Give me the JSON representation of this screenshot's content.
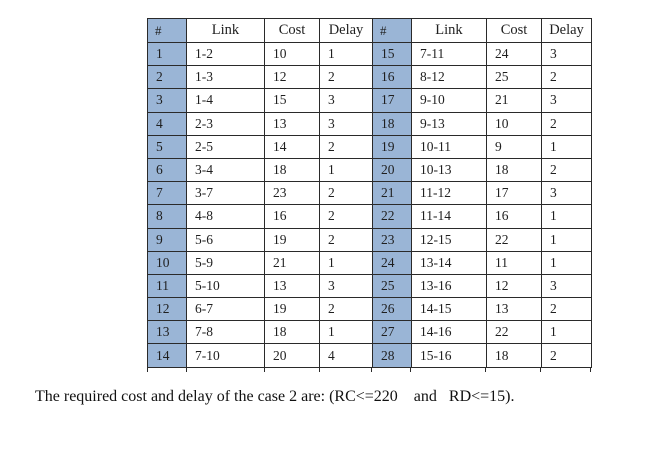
{
  "table": {
    "columns": [
      "#",
      "Link",
      "Cost",
      "Delay",
      "#",
      "Link",
      "Cost",
      "Delay"
    ],
    "rows": [
      [
        "1",
        "1-2",
        "10",
        "1",
        "15",
        "7-11",
        "24",
        "3"
      ],
      [
        "2",
        "1-3",
        "12",
        "2",
        "16",
        "8-12",
        "25",
        "2"
      ],
      [
        "3",
        "1-4",
        "15",
        "3",
        "17",
        "9-10",
        "21",
        "3"
      ],
      [
        "4",
        "2-3",
        "13",
        "3",
        "18",
        "9-13",
        "10",
        "2"
      ],
      [
        "5",
        "2-5",
        "14",
        "2",
        "19",
        "10-11",
        "9",
        "1"
      ],
      [
        "6",
        "3-4",
        "18",
        "1",
        "20",
        "10-13",
        "18",
        "2"
      ],
      [
        "7",
        "3-7",
        "23",
        "2",
        "21",
        "11-12",
        "17",
        "3"
      ],
      [
        "8",
        "4-8",
        "16",
        "2",
        "22",
        "11-14",
        "16",
        "1"
      ],
      [
        "9",
        "5-6",
        "19",
        "2",
        "23",
        "12-15",
        "22",
        "1"
      ],
      [
        "10",
        "5-9",
        "21",
        "1",
        "24",
        "13-14",
        "11",
        "1"
      ],
      [
        "11",
        "5-10",
        "13",
        "3",
        "25",
        "13-16",
        "12",
        "3"
      ],
      [
        "12",
        "6-7",
        "19",
        "2",
        "26",
        "14-15",
        "13",
        "2"
      ],
      [
        "13",
        "7-8",
        "18",
        "1",
        "27",
        "14-16",
        "22",
        "1"
      ],
      [
        "14",
        "7-10",
        "20",
        "4",
        "28",
        "15-16",
        "18",
        "2"
      ]
    ],
    "accent_color": "#9ab5d6",
    "border_color": "#2a2a2a"
  },
  "caption": "The required cost and delay of the case 2 are: (RC<=220    and   RD<=15)."
}
